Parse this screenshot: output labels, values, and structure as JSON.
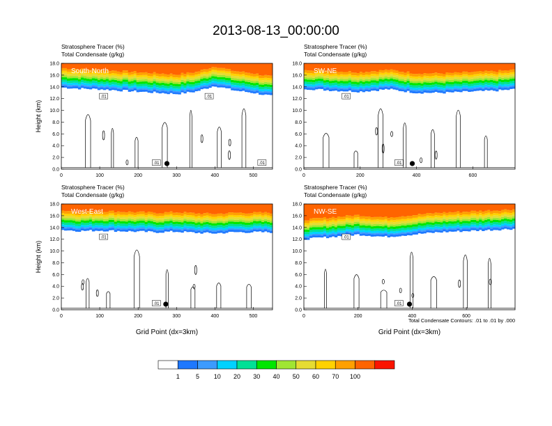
{
  "figure": {
    "title": "2013-08-13_00:00:00",
    "footnote": "Total Condensate Contours: .01 to .01 by .000"
  },
  "colors": {
    "levels": [
      "#ffffff",
      "#1e78ff",
      "#3c9bff",
      "#00d2ff",
      "#00e196",
      "#00e600",
      "#a0e632",
      "#e6dc32",
      "#ffd200",
      "#ffa000",
      "#ff6400",
      "#fa1400"
    ],
    "contour": "#000000",
    "frame": "#000000"
  },
  "colorbar": {
    "labels": [
      "1",
      "5",
      "10",
      "20",
      "30",
      "40",
      "50",
      "60",
      "70",
      "100"
    ]
  },
  "chart_data": [
    {
      "type": "heatmap",
      "panel": "South-North",
      "title_lines": [
        "Stratosphere Tracer   (%)",
        "Total Condensate   (g/kg)"
      ],
      "ylabel": "Height (km)",
      "xlabel": "",
      "xlim": [
        0,
        550
      ],
      "ylim": [
        0,
        18
      ],
      "xticks": [
        "0",
        "100",
        "200",
        "300",
        "400",
        "500"
      ],
      "yticks": [
        "0.0",
        "2.0",
        "4.0",
        "6.0",
        "8.0",
        "10.0",
        "12.0",
        "14.0",
        "16.0",
        "18.0"
      ],
      "tropopause_height_km": [
        [
          0,
          14.5
        ],
        [
          50,
          14.3
        ],
        [
          100,
          14.2
        ],
        [
          150,
          14.0
        ],
        [
          200,
          13.8
        ],
        [
          250,
          13.6
        ],
        [
          300,
          13.4
        ],
        [
          350,
          13.8
        ],
        [
          400,
          14.8
        ],
        [
          450,
          14.0
        ],
        [
          500,
          13.6
        ],
        [
          550,
          13.0
        ]
      ],
      "contour_labels": [
        ".01",
        ".01",
        ".01",
        ".01"
      ],
      "marker_x": 275
    },
    {
      "type": "heatmap",
      "panel": "SW-NE",
      "title_lines": [
        "Stratosphere Tracer   (%)",
        "Total Condensate   (g/kg)"
      ],
      "ylabel": "",
      "xlabel": "",
      "xlim": [
        0,
        750
      ],
      "ylim": [
        0,
        18
      ],
      "xticks": [
        "0",
        "200",
        "400",
        "600"
      ],
      "yticks": [
        "0.0",
        "2.0",
        "4.0",
        "6.0",
        "8.0",
        "10.0",
        "12.0",
        "14.0",
        "16.0",
        "18.0"
      ],
      "tropopause_height_km": [
        [
          0,
          14.3
        ],
        [
          100,
          14.0
        ],
        [
          200,
          13.8
        ],
        [
          300,
          14.2
        ],
        [
          400,
          13.6
        ],
        [
          500,
          13.6
        ],
        [
          600,
          13.8
        ],
        [
          700,
          14.0
        ],
        [
          750,
          14.2
        ]
      ],
      "contour_labels": [
        ".01",
        ".01"
      ],
      "marker_x": 385
    },
    {
      "type": "heatmap",
      "panel": "West-East",
      "title_lines": [
        "Stratosphere Tracer   (%)",
        "Total Condensate   (g/kg)"
      ],
      "ylabel": "Height (km)",
      "xlabel": "Grid Point (dx=3km)",
      "xlim": [
        0,
        550
      ],
      "ylim": [
        0,
        18
      ],
      "xticks": [
        "0",
        "100",
        "200",
        "300",
        "400",
        "500"
      ],
      "yticks": [
        "0.0",
        "2.0",
        "4.0",
        "6.0",
        "8.0",
        "10.0",
        "12.0",
        "14.0",
        "16.0",
        "18.0"
      ],
      "tropopause_height_km": [
        [
          0,
          14.2
        ],
        [
          50,
          14.0
        ],
        [
          100,
          14.1
        ],
        [
          150,
          14.0
        ],
        [
          200,
          13.9
        ],
        [
          250,
          13.8
        ],
        [
          300,
          13.9
        ],
        [
          350,
          13.7
        ],
        [
          400,
          13.6
        ],
        [
          450,
          13.8
        ],
        [
          500,
          13.8
        ],
        [
          550,
          13.8
        ]
      ],
      "contour_labels": [
        ".01",
        ".01"
      ],
      "marker_x": 272
    },
    {
      "type": "heatmap",
      "panel": "NW-SE",
      "title_lines": [
        "Stratosphere Tracer   (%)",
        "Total Condensate   (g/kg)"
      ],
      "ylabel": "",
      "xlabel": "Grid Point (dx=3km)",
      "xlim": [
        0,
        780
      ],
      "ylim": [
        0,
        18
      ],
      "xticks": [
        "0",
        "200",
        "400",
        "600"
      ],
      "yticks": [
        "0.0",
        "2.0",
        "4.0",
        "6.0",
        "8.0",
        "10.0",
        "12.0",
        "14.0",
        "16.0",
        "18.0"
      ],
      "tropopause_height_km": [
        [
          0,
          12.6
        ],
        [
          100,
          13.0
        ],
        [
          200,
          13.4
        ],
        [
          300,
          13.0
        ],
        [
          400,
          13.4
        ],
        [
          500,
          13.8
        ],
        [
          600,
          14.0
        ],
        [
          700,
          14.2
        ],
        [
          780,
          14.4
        ]
      ],
      "contour_labels": [
        ".01",
        ".01"
      ],
      "marker_x": 390
    }
  ]
}
